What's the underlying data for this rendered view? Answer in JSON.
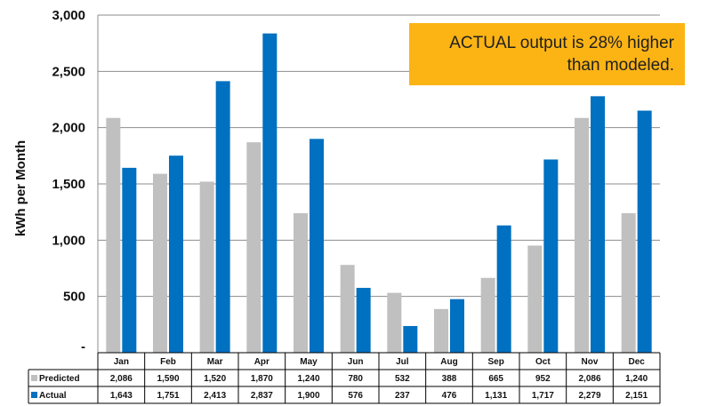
{
  "chart_data": {
    "type": "bar",
    "title": "",
    "xlabel": "",
    "ylabel": "kWh per Month",
    "ylim": [
      0,
      3000
    ],
    "yticks": [
      "-",
      "500",
      "1,000",
      "1,500",
      "2,000",
      "2,500",
      "3,000"
    ],
    "ytick_values": [
      0,
      500,
      1000,
      1500,
      2000,
      2500,
      3000
    ],
    "grid": true,
    "categories": [
      "Jan",
      "Feb",
      "Mar",
      "Apr",
      "May",
      "Jun",
      "Jul",
      "Aug",
      "Sep",
      "Oct",
      "Nov",
      "Dec"
    ],
    "series": [
      {
        "name": "Predicted",
        "color": "#c0c0c0",
        "values": [
          2086,
          1590,
          1520,
          1870,
          1240,
          780,
          532,
          388,
          665,
          952,
          2086,
          1240
        ],
        "labels": [
          "2,086",
          "1,590",
          "1,520",
          "1,870",
          "1,240",
          "780",
          "532",
          "388",
          "665",
          "952",
          "2,086",
          "1,240"
        ]
      },
      {
        "name": "Actual",
        "color": "#0070c0",
        "values": [
          1643,
          1751,
          2413,
          2837,
          1900,
          576,
          237,
          476,
          1131,
          1717,
          2279,
          2151
        ],
        "labels": [
          "1,643",
          "1,751",
          "2,413",
          "2,837",
          "1,900",
          "576",
          "237",
          "476",
          "1,131",
          "1,717",
          "2,279",
          "2,151"
        ]
      }
    ],
    "annotation": "ACTUAL output is 28% higher than modeled.",
    "annotation_color": "#fcb415"
  }
}
